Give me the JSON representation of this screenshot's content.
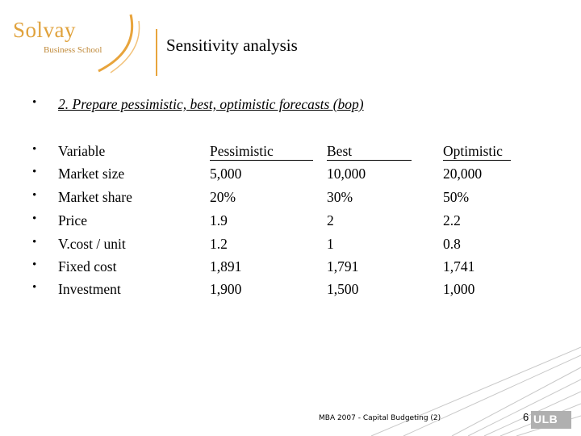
{
  "logo": {
    "word": "Solvay",
    "sub": "Business School"
  },
  "slide": {
    "title": "Sensitivity analysis",
    "step": "2. Prepare pessimistic, best, optimistic forecasts (bop)"
  },
  "table": {
    "headers": [
      "Variable",
      "Pessimistic",
      "Best",
      "Optimistic"
    ],
    "rows": [
      [
        "Market size",
        "5,000",
        "10,000",
        "20,000"
      ],
      [
        "Market share",
        "20%",
        "30%",
        "50%"
      ],
      [
        "Price",
        "1.9",
        "2",
        "2.2"
      ],
      [
        "V.cost / unit",
        "1.2",
        "1",
        "0.8"
      ],
      [
        "Fixed cost",
        "1,891",
        "1,791",
        "1,741"
      ],
      [
        "Investment",
        "1,900",
        "1,500",
        "1,000"
      ]
    ]
  },
  "footer": {
    "text": "MBA 2007 - Capital Budgeting (2)",
    "page": "6",
    "brand": "ULB"
  },
  "colors": {
    "accent": "#e8a43c",
    "footer_lines": "#c8c8c8"
  },
  "bullet": "•"
}
